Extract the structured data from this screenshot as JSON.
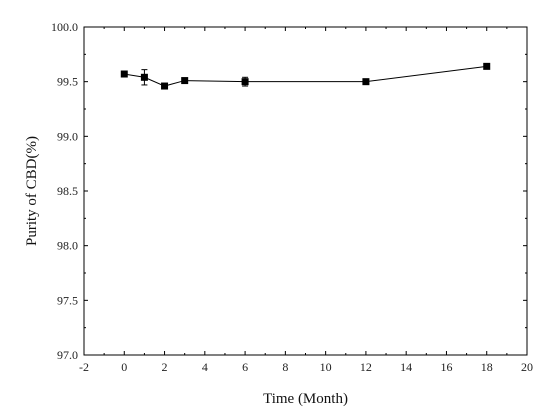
{
  "chart_data": {
    "type": "line",
    "xlabel": "Time (Month)",
    "ylabel": "Purity of CBD(%)",
    "xlim": [
      -2,
      20
    ],
    "ylim": [
      97.0,
      100.0
    ],
    "x_ticks": [
      -2,
      0,
      2,
      4,
      6,
      8,
      10,
      12,
      14,
      16,
      18,
      20
    ],
    "x_tick_labels": [
      "-2",
      "0",
      "2",
      "4",
      "6",
      "8",
      "10",
      "12",
      "14",
      "16",
      "18",
      "20"
    ],
    "y_ticks": [
      97.0,
      97.5,
      98.0,
      98.5,
      99.0,
      99.5,
      100.0
    ],
    "y_tick_labels": [
      "97.0",
      "97.5",
      "98.0",
      "98.5",
      "99.0",
      "99.5",
      "100.0"
    ],
    "series": [
      {
        "x": [
          0,
          1,
          2,
          3,
          6,
          12,
          18
        ],
        "y": [
          99.57,
          99.54,
          99.46,
          99.51,
          99.5,
          99.5,
          99.64
        ],
        "error": [
          0.01,
          0.07,
          0.01,
          0.01,
          0.04,
          0.01,
          0.01
        ],
        "marker": "square",
        "color": "#000000"
      }
    ],
    "grid": false
  }
}
